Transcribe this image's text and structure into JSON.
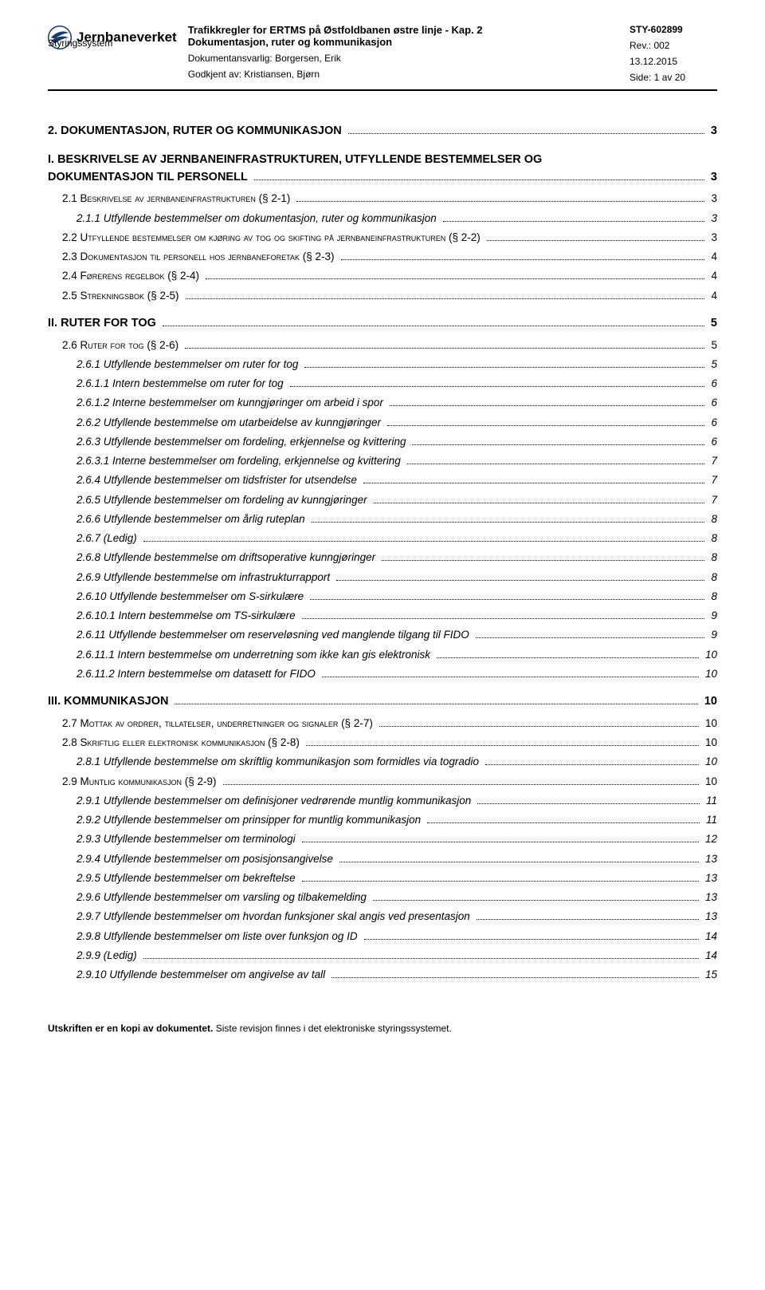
{
  "header": {
    "org": "Jernbaneverket",
    "title": "Trafikkregler for ERTMS på Østfoldbanen østre linje - Kap. 2",
    "subtitle": "Dokumentasjon, ruter og kommunikasjon",
    "doc_id": "STY-602899",
    "rev": "Rev.: 002",
    "system": "Styringssystem",
    "responsible": "Dokumentansvarlig: Borgersen, Erik",
    "date": "13.12.2015",
    "approved": "Godkjent av: Kristiansen, Bjørn",
    "pageinfo": "Side: 1 av 20"
  },
  "toc": [
    {
      "level": 1,
      "text": "2. DOKUMENTASJON, RUTER OG KOMMUNIKASJON",
      "page": "3"
    },
    {
      "level": 1,
      "text": "I. BESKRIVELSE AV JERNBANEINFRASTRUKTUREN, UTFYLLENDE BESTEMMELSER OG DOKUMENTASJON TIL PERSONELL",
      "page": "3",
      "wrap": true
    },
    {
      "level": 2,
      "text": "2.1 Beskrivelse av jernbaneinfrastrukturen (§ 2-1)",
      "page": "3"
    },
    {
      "level": 3,
      "text": "2.1.1 Utfyllende bestemmelser om dokumentasjon, ruter og kommunikasjon",
      "page": "3"
    },
    {
      "level": 2,
      "text": "2.2 Utfyllende bestemmelser om kjøring av tog og skifting på jernbaneinfrastrukturen (§ 2-2)",
      "page": "3"
    },
    {
      "level": 2,
      "text": "2.3 Dokumentasjon til personell hos jernbaneforetak (§ 2-3)",
      "page": "4"
    },
    {
      "level": 2,
      "text": "2.4 Førerens regelbok (§ 2-4)",
      "page": "4"
    },
    {
      "level": 2,
      "text": "2.5 Strekningsbok (§ 2-5)",
      "page": "4"
    },
    {
      "level": 1,
      "text": "II. RUTER FOR TOG",
      "page": "5"
    },
    {
      "level": 2,
      "text": "2.6 Ruter for tog (§ 2-6)",
      "page": "5"
    },
    {
      "level": 3,
      "text": "2.6.1 Utfyllende bestemmelser om ruter for tog",
      "page": "5"
    },
    {
      "level": 4,
      "text": "2.6.1.1 Intern bestemmelse om ruter for tog",
      "page": "6"
    },
    {
      "level": 4,
      "text": "2.6.1.2 Interne bestemmelser om kunngjøringer om arbeid i spor",
      "page": "6"
    },
    {
      "level": 3,
      "text": "2.6.2 Utfyllende bestemmelse om utarbeidelse av kunngjøringer",
      "page": "6"
    },
    {
      "level": 3,
      "text": "2.6.3 Utfyllende bestemmelser om fordeling, erkjennelse og kvittering",
      "page": "6"
    },
    {
      "level": 4,
      "text": "2.6.3.1 Interne bestemmelser om fordeling, erkjennelse og kvittering",
      "page": "7"
    },
    {
      "level": 3,
      "text": "2.6.4 Utfyllende bestemmelser om tidsfrister for utsendelse",
      "page": "7"
    },
    {
      "level": 3,
      "text": "2.6.5 Utfyllende bestemmelser om fordeling av kunngjøringer",
      "page": "7"
    },
    {
      "level": 3,
      "text": "2.6.6 Utfyllende bestemmelser om årlig ruteplan",
      "page": "8"
    },
    {
      "level": 3,
      "text": "2.6.7 (Ledig)",
      "page": "8"
    },
    {
      "level": 3,
      "text": "2.6.8 Utfyllende bestemmelse om driftsoperative kunngjøringer",
      "page": "8"
    },
    {
      "level": 3,
      "text": "2.6.9 Utfyllende bestemmelse om infrastrukturrapport",
      "page": "8"
    },
    {
      "level": 3,
      "text": "2.6.10 Utfyllende bestemmelser om S-sirkulære",
      "page": "8"
    },
    {
      "level": 4,
      "text": "2.6.10.1 Intern bestemmelse om TS-sirkulære",
      "page": "9"
    },
    {
      "level": 3,
      "text": "2.6.11 Utfyllende bestemmelser om reserveløsning ved manglende tilgang til FIDO",
      "page": "9"
    },
    {
      "level": 4,
      "text": "2.6.11.1 Intern bestemmelse om underretning som ikke kan gis elektronisk",
      "page": "10"
    },
    {
      "level": 4,
      "text": "2.6.11.2 Intern bestemmelse om datasett for FIDO",
      "page": "10"
    },
    {
      "level": 1,
      "text": "III. KOMMUNIKASJON",
      "page": "10"
    },
    {
      "level": 2,
      "text": "2.7 Mottak av ordrer, tillatelser, underretninger og signaler (§ 2-7)",
      "page": "10"
    },
    {
      "level": 2,
      "text": "2.8 Skriftlig eller elektronisk kommunikasjon (§ 2-8)",
      "page": "10"
    },
    {
      "level": 3,
      "text": "2.8.1 Utfyllende bestemmelse om skriftlig kommunikasjon som formidles via togradio",
      "page": "10"
    },
    {
      "level": 2,
      "text": "2.9 Muntlig kommunikasjon (§ 2-9)",
      "page": "10"
    },
    {
      "level": 3,
      "text": "2.9.1 Utfyllende bestemmelser om definisjoner vedrørende muntlig kommunikasjon",
      "page": "11"
    },
    {
      "level": 3,
      "text": "2.9.2 Utfyllende bestemmelser om prinsipper for muntlig kommunikasjon",
      "page": "11"
    },
    {
      "level": 3,
      "text": "2.9.3 Utfyllende bestemmelser om terminologi",
      "page": "12"
    },
    {
      "level": 3,
      "text": "2.9.4 Utfyllende bestemmelser om posisjonsangivelse",
      "page": "13"
    },
    {
      "level": 3,
      "text": "2.9.5 Utfyllende bestemmelser om bekreftelse",
      "page": "13"
    },
    {
      "level": 3,
      "text": "2.9.6 Utfyllende bestemmelser om varsling og tilbakemelding",
      "page": "13"
    },
    {
      "level": 3,
      "text": "2.9.7 Utfyllende bestemmelser om hvordan funksjoner skal angis ved presentasjon",
      "page": "13"
    },
    {
      "level": 3,
      "text": "2.9.8 Utfyllende bestemmelser om liste over funksjon og ID",
      "page": "14"
    },
    {
      "level": 3,
      "text": "2.9.9 (Ledig)",
      "page": "14"
    },
    {
      "level": 3,
      "text": "2.9.10 Utfyllende bestemmelser om angivelse av tall",
      "page": "15"
    }
  ],
  "footer": {
    "bold": "Utskriften er en kopi av dokumentet.",
    "rest": " Siste revisjon finnes i det elektroniske styringssystemet."
  }
}
